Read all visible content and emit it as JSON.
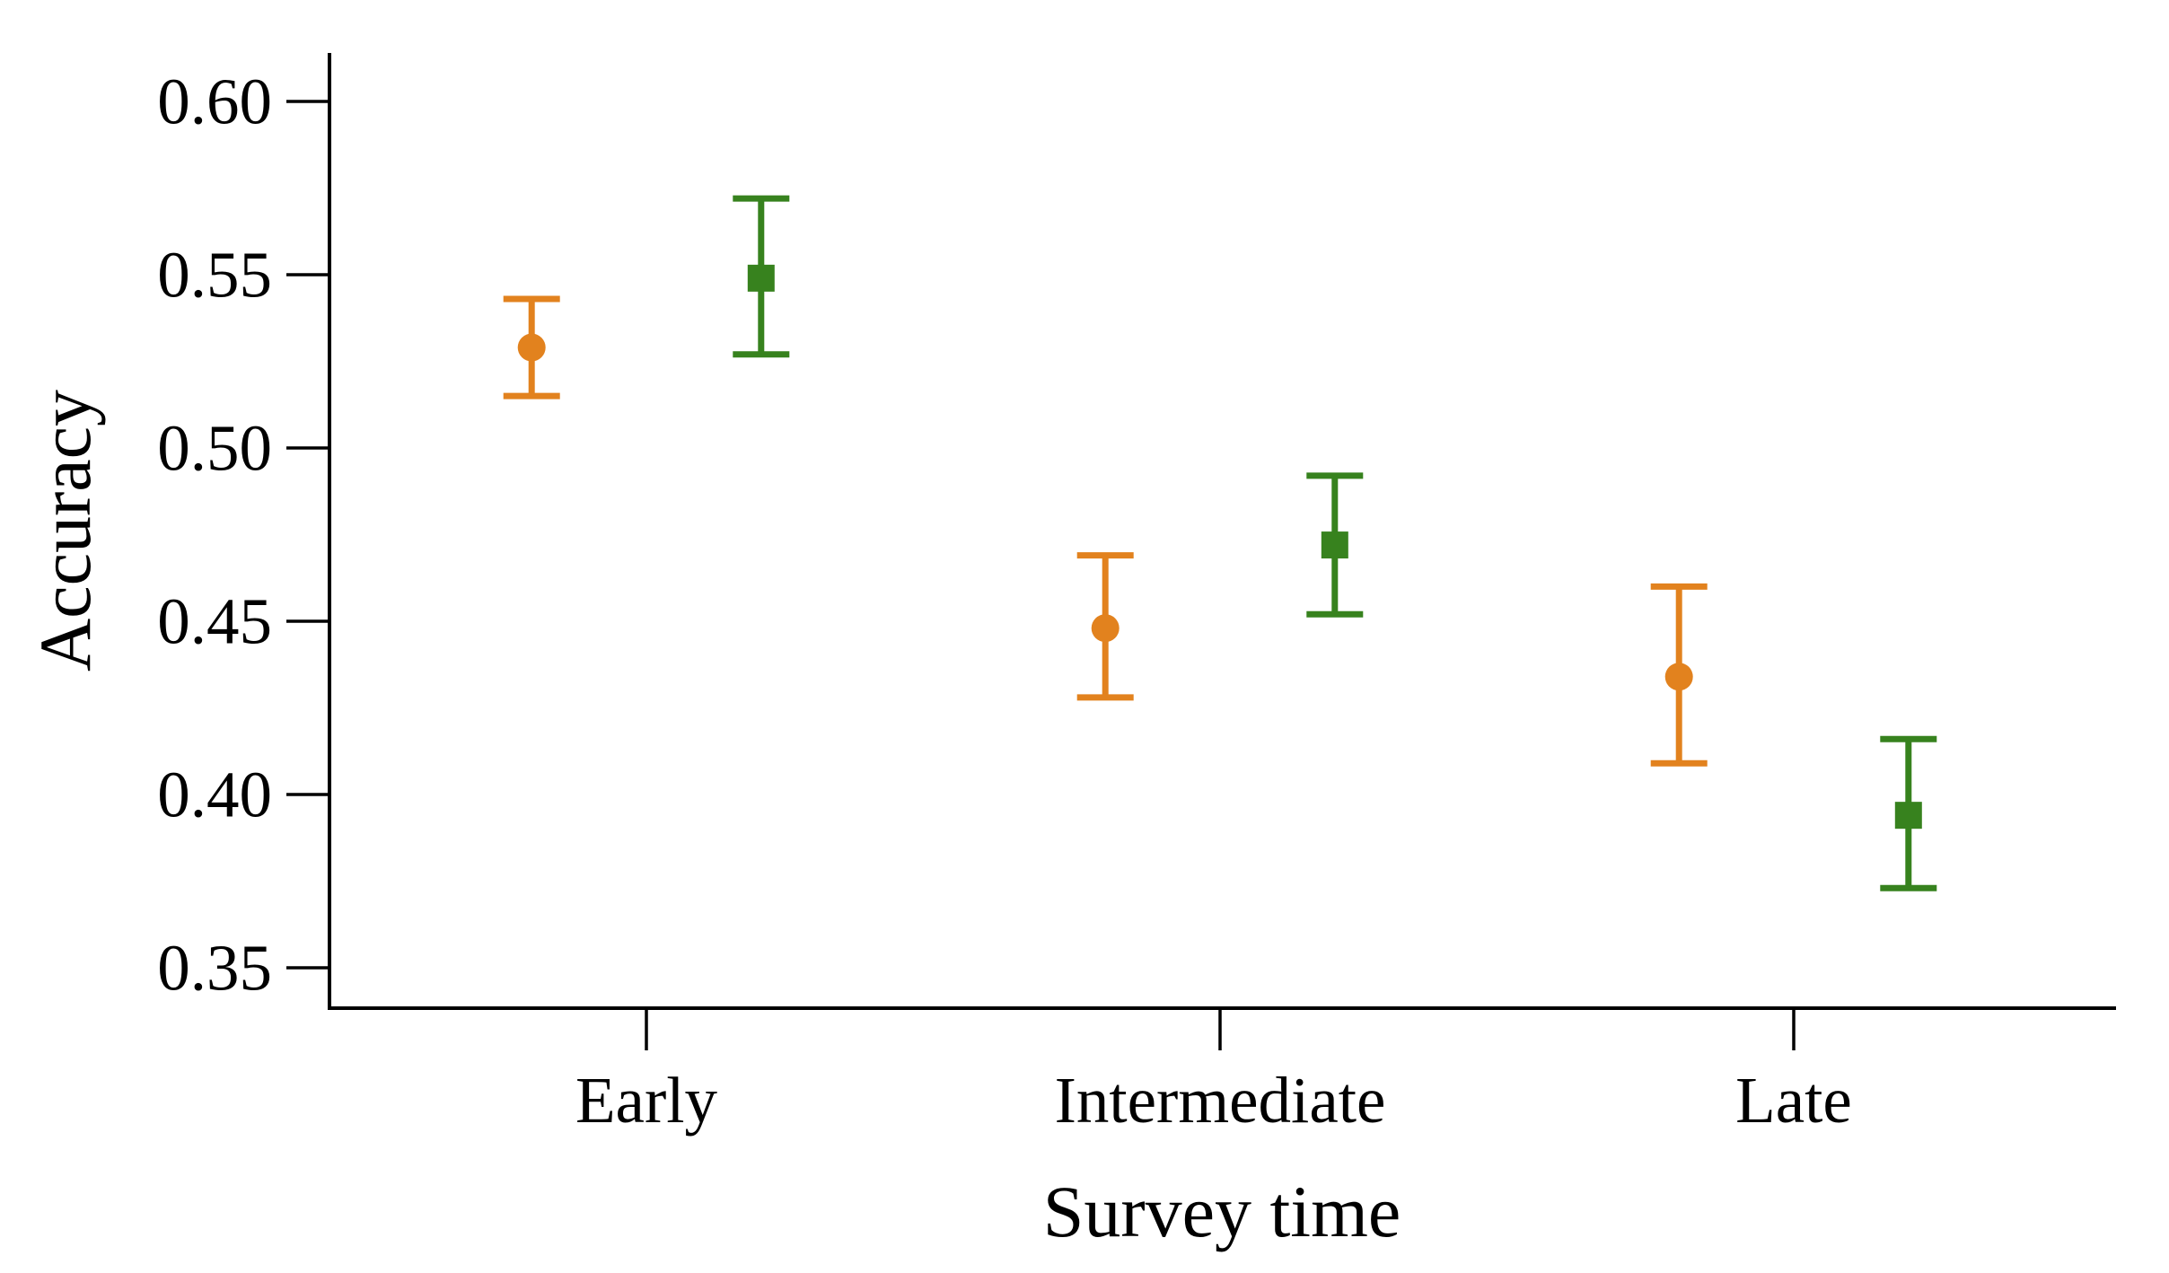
{
  "figure": {
    "background": "#ffffff",
    "axis_color": "#000000"
  },
  "chart_data": {
    "type": "scatter",
    "subtype": "point-estimates-with-error-bars",
    "title": "",
    "xlabel": "Survey time",
    "ylabel": "Accuracy",
    "categories": [
      "Early",
      "Intermediate",
      "Late"
    ],
    "y_ticks": [
      0.6,
      0.55,
      0.5,
      0.45,
      0.4,
      0.35
    ],
    "y_tick_labels": [
      "0.60",
      "0.55",
      "0.50",
      "0.45",
      "0.40",
      "0.35"
    ],
    "ylim": [
      0.338,
      0.614
    ],
    "grid": false,
    "legend_position": "none",
    "series": [
      {
        "name": "series-1-orange-circle",
        "marker": "circle",
        "color": "#E2821E",
        "dodge_offset": -0.2,
        "means": [
          0.529,
          0.448,
          0.434
        ],
        "ci_low": [
          0.515,
          0.428,
          0.409
        ],
        "ci_high": [
          0.543,
          0.469,
          0.46
        ]
      },
      {
        "name": "series-2-green-square",
        "marker": "square",
        "color": "#37821E",
        "dodge_offset": 0.2,
        "means": [
          0.549,
          0.472,
          0.394
        ],
        "ci_low": [
          0.527,
          0.452,
          0.373
        ],
        "ci_high": [
          0.572,
          0.492,
          0.416
        ]
      }
    ]
  }
}
